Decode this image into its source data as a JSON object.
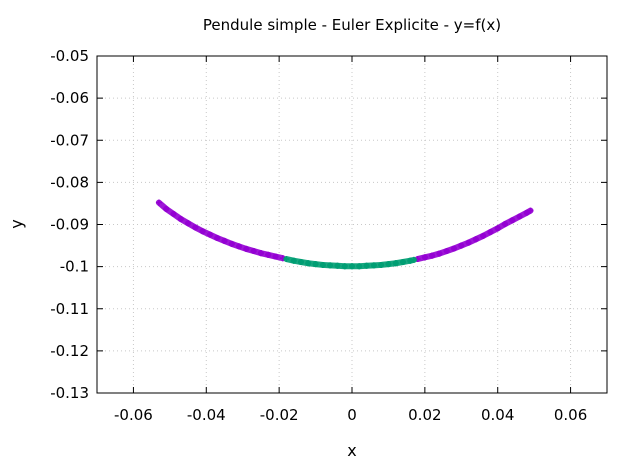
{
  "chart_data": {
    "type": "scatter",
    "title": "Pendule simple - Euler Explicite - y=f(x)",
    "xlabel": "x",
    "ylabel": "y",
    "xlim": [
      -0.07,
      0.07
    ],
    "ylim": [
      -0.13,
      -0.05
    ],
    "xticks": [
      -0.06,
      -0.04,
      -0.02,
      0,
      0.02,
      0.04,
      0.06
    ],
    "xtick_labels": [
      "-0.06",
      "-0.04",
      "-0.02",
      "0",
      "0.02",
      "0.04",
      "0.06"
    ],
    "yticks": [
      -0.05,
      -0.06,
      -0.07,
      -0.08,
      -0.09,
      -0.1,
      -0.11,
      -0.12,
      -0.13
    ],
    "ytick_labels": [
      "-0.05",
      "-0.06",
      "-0.07",
      "-0.08",
      "-0.09",
      "-0.1",
      "-0.11",
      "-0.12",
      "-0.13"
    ],
    "grid": true,
    "series": [
      {
        "color": "#9400d3",
        "marker": "plus",
        "points": [
          [
            -0.053,
            -0.0848
          ],
          [
            -0.051,
            -0.0863
          ],
          [
            -0.049,
            -0.0875
          ],
          [
            -0.047,
            -0.0887
          ],
          [
            -0.045,
            -0.0897
          ],
          [
            -0.043,
            -0.0907
          ],
          [
            -0.041,
            -0.0916
          ],
          [
            -0.039,
            -0.0924
          ],
          [
            -0.037,
            -0.0932
          ],
          [
            -0.035,
            -0.0939
          ],
          [
            -0.033,
            -0.0946
          ],
          [
            -0.031,
            -0.0952
          ],
          [
            -0.029,
            -0.0958
          ],
          [
            -0.027,
            -0.0963
          ],
          [
            -0.025,
            -0.0968
          ],
          [
            -0.023,
            -0.0972
          ],
          [
            -0.021,
            -0.0976
          ],
          [
            -0.019,
            -0.098
          ],
          [
            0.018,
            -0.0982
          ],
          [
            0.02,
            -0.0978
          ],
          [
            0.022,
            -0.0974
          ],
          [
            0.024,
            -0.0969
          ],
          [
            0.026,
            -0.0963
          ],
          [
            0.028,
            -0.0957
          ],
          [
            0.03,
            -0.095
          ],
          [
            0.032,
            -0.0943
          ],
          [
            0.034,
            -0.0935
          ],
          [
            0.036,
            -0.0927
          ],
          [
            0.038,
            -0.0918
          ],
          [
            0.04,
            -0.0909
          ],
          [
            0.042,
            -0.0899
          ],
          [
            0.044,
            -0.089
          ],
          [
            0.046,
            -0.0881
          ],
          [
            0.048,
            -0.0872
          ],
          [
            0.049,
            -0.0867
          ]
        ]
      },
      {
        "color": "#009e73",
        "marker": "plus",
        "points": [
          [
            -0.018,
            -0.0982
          ],
          [
            -0.016,
            -0.0986
          ],
          [
            -0.014,
            -0.0989
          ],
          [
            -0.012,
            -0.0992
          ],
          [
            -0.01,
            -0.0994
          ],
          [
            -0.008,
            -0.0996
          ],
          [
            -0.006,
            -0.0997
          ],
          [
            -0.004,
            -0.0998
          ],
          [
            -0.002,
            -0.0999
          ],
          [
            0.0,
            -0.0999
          ],
          [
            0.002,
            -0.0999
          ],
          [
            0.004,
            -0.0998
          ],
          [
            0.006,
            -0.0997
          ],
          [
            0.008,
            -0.0996
          ],
          [
            0.01,
            -0.0994
          ],
          [
            0.012,
            -0.0992
          ],
          [
            0.014,
            -0.0989
          ],
          [
            0.016,
            -0.0986
          ],
          [
            0.017,
            -0.0984
          ]
        ]
      }
    ]
  }
}
